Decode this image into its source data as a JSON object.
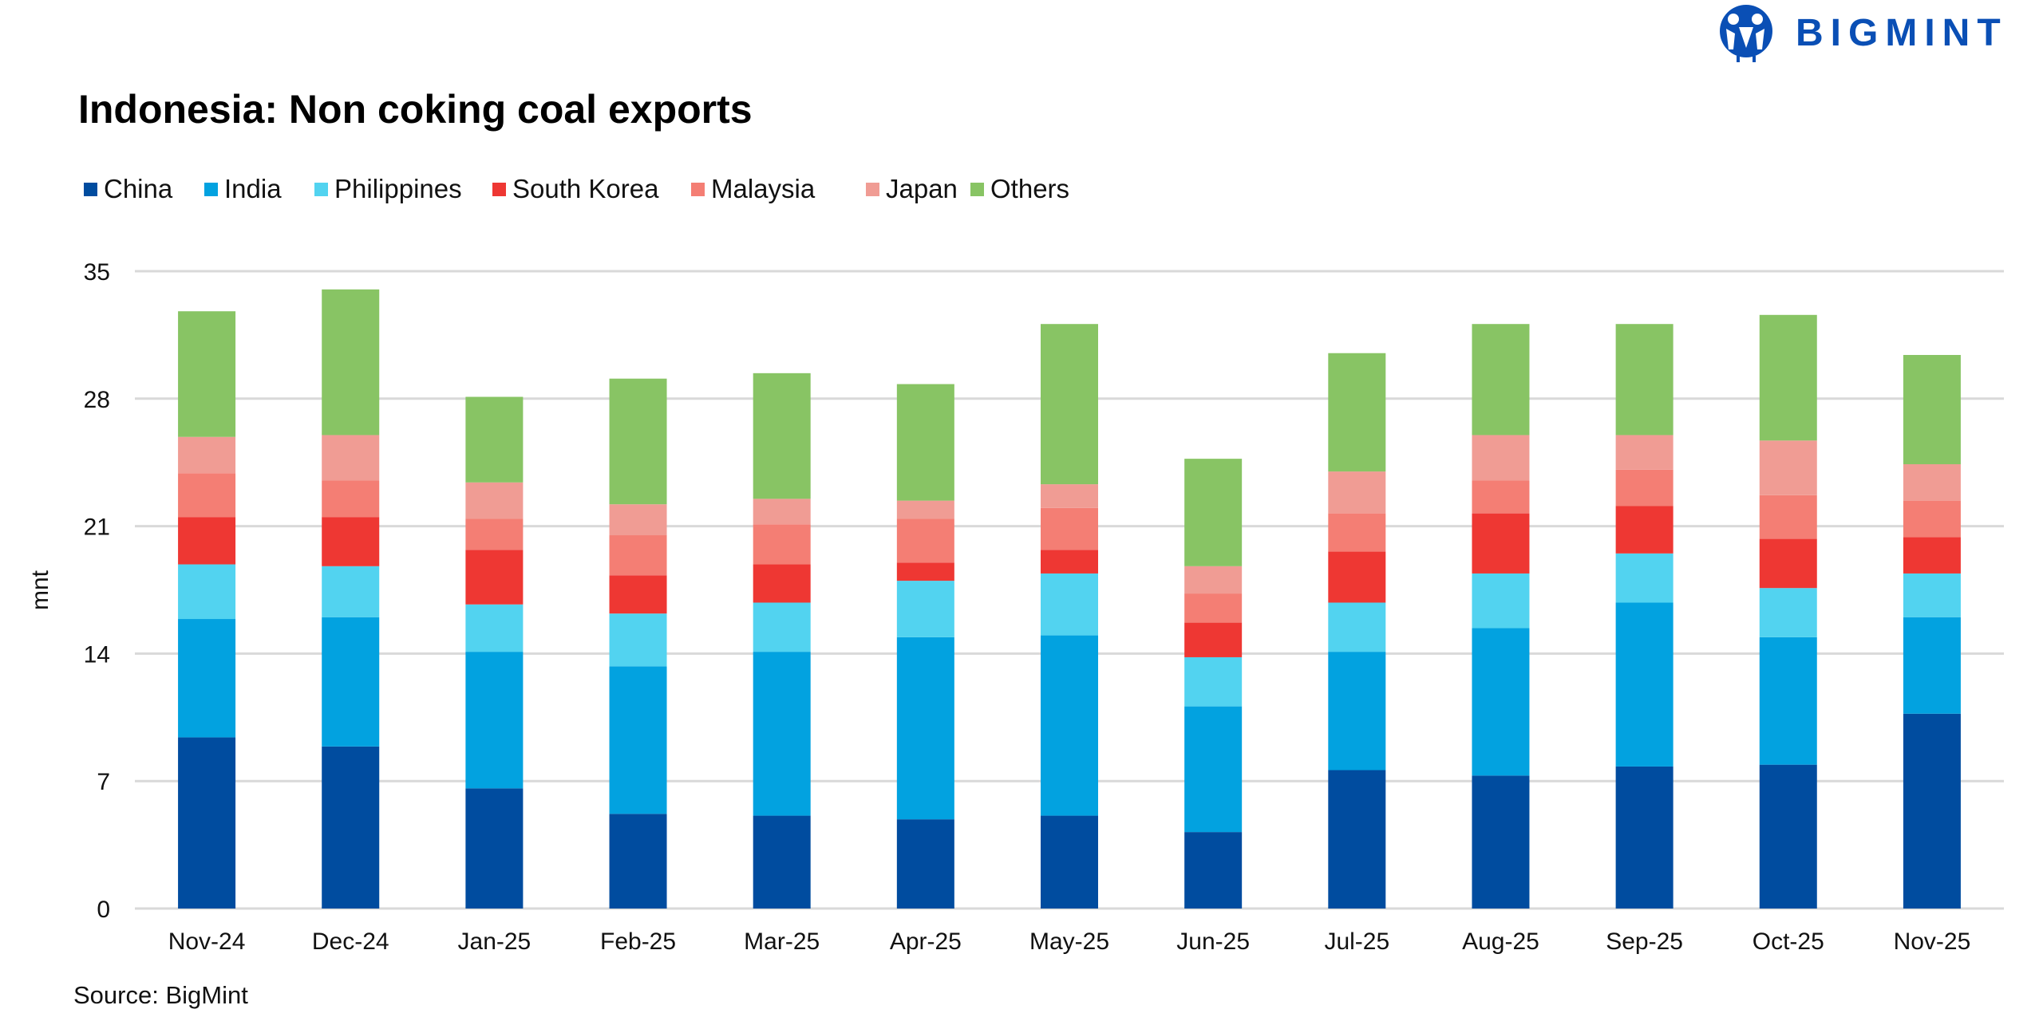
{
  "logo": {
    "text": "BIGMINT",
    "color": "#0a4fb5"
  },
  "source": "Source: BigMint",
  "chart_data": {
    "type": "bar",
    "stacked": true,
    "title": "Indonesia: Non coking coal exports",
    "xlabel": "",
    "ylabel": "mnt",
    "ylim": [
      0,
      35
    ],
    "yticks": [
      0,
      7,
      14,
      21,
      28,
      35
    ],
    "grid": true,
    "legend_position": "top-left",
    "categories": [
      "Nov-24",
      "Dec-24",
      "Jan-25",
      "Feb-25",
      "Mar-25",
      "Apr-25",
      "May-25",
      "Jun-25",
      "Jul-25",
      "Aug-25",
      "Sep-25",
      "Oct-25",
      "Nov-25"
    ],
    "series": [
      {
        "name": "China",
        "color": "#004c9f",
        "values": [
          9.4,
          8.9,
          6.6,
          5.2,
          5.1,
          4.9,
          5.1,
          4.2,
          7.6,
          7.3,
          7.8,
          7.9,
          10.7
        ]
      },
      {
        "name": "India",
        "color": "#02a2e0",
        "values": [
          6.5,
          7.1,
          7.5,
          8.1,
          9.0,
          10.0,
          9.9,
          6.9,
          6.5,
          8.1,
          9.0,
          7.0,
          5.3
        ]
      },
      {
        "name": "Philippines",
        "color": "#52d3f0",
        "values": [
          3.0,
          2.8,
          2.6,
          2.9,
          2.7,
          3.1,
          3.4,
          2.7,
          2.7,
          3.0,
          2.7,
          2.7,
          2.4
        ]
      },
      {
        "name": "South Korea",
        "color": "#ee3733",
        "values": [
          2.6,
          2.7,
          3.0,
          2.1,
          2.1,
          1.0,
          1.3,
          1.9,
          2.8,
          3.3,
          2.6,
          2.7,
          2.0
        ]
      },
      {
        "name": "Malaysia",
        "color": "#f47e74",
        "values": [
          2.4,
          2.0,
          1.7,
          2.2,
          2.2,
          2.4,
          2.3,
          1.6,
          2.1,
          1.8,
          2.0,
          2.4,
          2.0
        ]
      },
      {
        "name": "Japan",
        "color": "#f09c94",
        "values": [
          2.0,
          2.5,
          2.0,
          1.7,
          1.4,
          1.0,
          1.3,
          1.5,
          2.3,
          2.5,
          1.9,
          3.0,
          2.0
        ]
      },
      {
        "name": "Others",
        "color": "#88c464",
        "values": [
          6.9,
          8.0,
          4.7,
          6.9,
          6.9,
          6.4,
          8.8,
          5.9,
          6.5,
          6.1,
          6.1,
          6.9,
          6.0
        ]
      }
    ]
  }
}
